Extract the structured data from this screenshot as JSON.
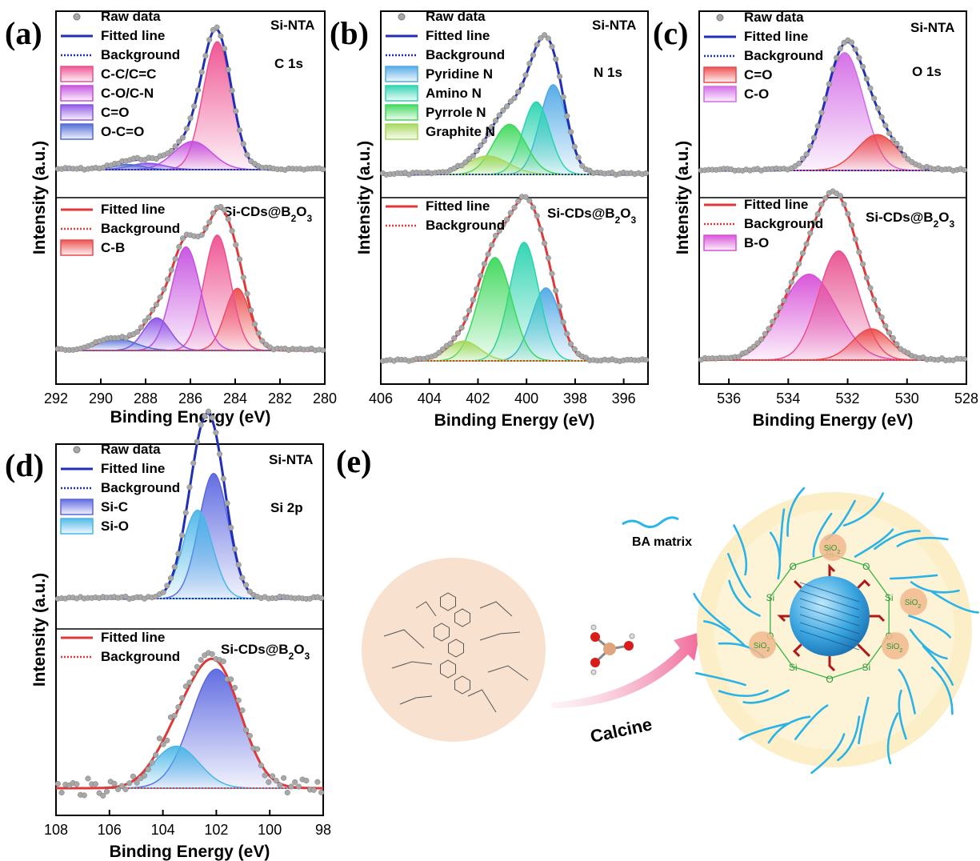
{
  "figure": {
    "panels": [
      {
        "id": "a",
        "panel_label": "(a)",
        "xlabel": "Binding Energy (eV)",
        "ylabel": "Intensity (a.u.)",
        "xlim": [
          292,
          280
        ],
        "xticks": [
          292,
          290,
          288,
          286,
          284,
          282,
          280
        ],
        "top": {
          "sample": "Si-NTA",
          "region": "C 1s",
          "legend": [
            {
              "label": "Raw data",
              "kind": "dot"
            },
            {
              "label": "Fitted line",
              "kind": "line",
              "color": "#1f2fb8"
            },
            {
              "label": "Background",
              "kind": "dotted",
              "color": "#1f2fb8"
            },
            {
              "label": "C-C/C=C",
              "kind": "box",
              "color": "#ee4f8f"
            },
            {
              "label": "C-O/C-N",
              "kind": "box",
              "color": "#c64fe0"
            },
            {
              "label": "C=O",
              "kind": "box",
              "color": "#8c52e6"
            },
            {
              "label": "O-C=O",
              "kind": "box",
              "color": "#4d6ad6"
            }
          ]
        },
        "bottom": {
          "sample": "Si-CDs@B2O3",
          "legend": [
            {
              "label": "Fitted line",
              "kind": "line",
              "color": "#e03838"
            },
            {
              "label": "Background",
              "kind": "dotted",
              "color": "#e03838"
            },
            {
              "label": "C-B",
              "kind": "box",
              "color": "#ec4a4a"
            }
          ]
        }
      },
      {
        "id": "b",
        "panel_label": "(b)",
        "xlabel": "Binding Energy (eV)",
        "ylabel": "Intensity (a.u.)",
        "xlim": [
          406,
          395
        ],
        "xticks": [
          406,
          404,
          402,
          400,
          398,
          396
        ],
        "top": {
          "sample": "Si-NTA",
          "region": "N 1s",
          "legend": [
            {
              "label": "Raw data",
              "kind": "dot"
            },
            {
              "label": "Fitted line",
              "kind": "line",
              "color": "#1f2fb8"
            },
            {
              "label": "Background",
              "kind": "dotted",
              "color": "#1f2fb8"
            },
            {
              "label": "Pyridine N",
              "kind": "box",
              "color": "#4ea8e6"
            },
            {
              "label": "Amino N",
              "kind": "box",
              "color": "#2ad3b0"
            },
            {
              "label": "Pyrrole N",
              "kind": "box",
              "color": "#3cd85a"
            },
            {
              "label": "Graphite N",
              "kind": "box",
              "color": "#a5d85a"
            }
          ]
        },
        "bottom": {
          "sample": "Si-CDs@B2O3",
          "legend": [
            {
              "label": "Fitted line",
              "kind": "line",
              "color": "#e03838"
            },
            {
              "label": "Background",
              "kind": "dotted",
              "color": "#e03838"
            }
          ]
        }
      },
      {
        "id": "c",
        "panel_label": "(c)",
        "xlabel": "Binding Energy (eV)",
        "ylabel": "Intensity (a.u.)",
        "xlim": [
          537,
          528
        ],
        "xticks": [
          536,
          534,
          532,
          530,
          528
        ],
        "top": {
          "sample": "Si-NTA",
          "region": "O 1s",
          "legend": [
            {
              "label": "Raw data",
              "kind": "dot"
            },
            {
              "label": "Fitted line",
              "kind": "line",
              "color": "#1f2fb8"
            },
            {
              "label": "Background",
              "kind": "dotted",
              "color": "#1f2fb8"
            },
            {
              "label": "C=O",
              "kind": "box",
              "color": "#ec4a4a"
            },
            {
              "label": "C-O",
              "kind": "box",
              "color": "#d46ae6"
            }
          ]
        },
        "bottom": {
          "sample": "Si-CDs@B2O3",
          "legend": [
            {
              "label": "Fitted line",
              "kind": "line",
              "color": "#e03838"
            },
            {
              "label": "Background",
              "kind": "dotted",
              "color": "#e03838"
            },
            {
              "label": "B-O",
              "kind": "box",
              "color": "#d84fd8"
            }
          ]
        }
      },
      {
        "id": "d",
        "panel_label": "(d)",
        "xlabel": "Binding Energy (eV)",
        "ylabel": "Intensity (a.u.)",
        "xlim": [
          108,
          98
        ],
        "xticks": [
          108,
          106,
          104,
          102,
          100,
          98
        ],
        "top": {
          "sample": "Si-NTA",
          "region": "Si 2p",
          "legend": [
            {
              "label": "Raw data",
              "kind": "dot"
            },
            {
              "label": "Fitted line",
              "kind": "line",
              "color": "#1f2fb8"
            },
            {
              "label": "Background",
              "kind": "dotted",
              "color": "#1f2fb8"
            },
            {
              "label": "Si-C",
              "kind": "box",
              "color": "#5a66e0"
            },
            {
              "label": "Si-O",
              "kind": "box",
              "color": "#4ab6e8"
            }
          ]
        },
        "bottom": {
          "sample": "Si-CDs@B2O3",
          "legend": [
            {
              "label": "Fitted line",
              "kind": "line",
              "color": "#e03838"
            },
            {
              "label": "Background",
              "kind": "dotted",
              "color": "#e03838"
            }
          ]
        }
      }
    ],
    "schematic": {
      "panel_label": "(e)",
      "matrix_label": "BA matrix",
      "arrow_label": "Calcine",
      "sio2_label": "SiO",
      "sio2_sub": "2",
      "si_label": "Si",
      "o_label": "O"
    }
  },
  "chart_data": [
    {
      "type": "line",
      "panel": "a",
      "title": "",
      "xlabel": "Binding Energy (eV)",
      "ylabel": "Intensity (a.u.)",
      "xlim": [
        292,
        280
      ],
      "stacked": [
        {
          "sample": "Si-NTA",
          "region": "C 1s",
          "baseline": 0.04,
          "peaks": [
            {
              "name": "C-C/C=C",
              "center": 284.8,
              "fwhm": 1.5,
              "height": 1.0,
              "color": "#ee4f8f"
            },
            {
              "name": "C-O/C-N",
              "center": 285.9,
              "fwhm": 2.0,
              "height": 0.22,
              "color": "#c64fe0"
            },
            {
              "name": "C=O",
              "center": 287.9,
              "fwhm": 1.8,
              "height": 0.05,
              "color": "#8c52e6"
            },
            {
              "name": "O-C=O",
              "center": 288.8,
              "fwhm": 1.6,
              "height": 0.04,
              "color": "#4d6ad6"
            }
          ],
          "fit_color": "#1f2fb8"
        },
        {
          "sample": "Si-CDs@B2O3",
          "baseline": 0.04,
          "peaks": [
            {
              "name": "C-B",
              "center": 283.9,
              "fwhm": 1.3,
              "height": 0.42,
              "color": "#ec4a4a"
            },
            {
              "name": "C-C/C=C",
              "center": 284.8,
              "fwhm": 1.4,
              "height": 0.78,
              "color": "#ee4f8f"
            },
            {
              "name": "C-O/C-N",
              "center": 286.2,
              "fwhm": 1.5,
              "height": 0.7,
              "color": "#c64fe0"
            },
            {
              "name": "C=O",
              "center": 287.5,
              "fwhm": 1.4,
              "height": 0.22,
              "color": "#8c52e6"
            },
            {
              "name": "O-C=O",
              "center": 289.3,
              "fwhm": 2.0,
              "height": 0.08,
              "color": "#4d6ad6"
            }
          ],
          "fit_color": "#e03838"
        }
      ]
    },
    {
      "type": "line",
      "panel": "b",
      "title": "",
      "xlabel": "Binding Energy (eV)",
      "ylabel": "Intensity (a.u.)",
      "xlim": [
        406,
        395
      ],
      "stacked": [
        {
          "sample": "Si-NTA",
          "region": "N 1s",
          "baseline": 0.04,
          "peaks": [
            {
              "name": "Pyridine N",
              "center": 398.9,
              "fwhm": 1.3,
              "height": 0.68,
              "color": "#4ea8e6"
            },
            {
              "name": "Amino N",
              "center": 399.6,
              "fwhm": 1.3,
              "height": 0.55,
              "color": "#2ad3b0"
            },
            {
              "name": "Pyrrole N",
              "center": 400.7,
              "fwhm": 1.6,
              "height": 0.38,
              "color": "#3cd85a"
            },
            {
              "name": "Graphite N",
              "center": 401.6,
              "fwhm": 2.0,
              "height": 0.14,
              "color": "#a5d85a"
            }
          ],
          "fit_color": "#1f2fb8"
        },
        {
          "sample": "Si-CDs@B2O3",
          "baseline": 0.04,
          "peaks": [
            {
              "name": "Pyridine N",
              "center": 399.2,
              "fwhm": 1.4,
              "height": 0.48,
              "color": "#4ea8e6"
            },
            {
              "name": "Amino N",
              "center": 400.1,
              "fwhm": 1.4,
              "height": 0.78,
              "color": "#2ad3b0"
            },
            {
              "name": "Pyrrole N",
              "center": 401.3,
              "fwhm": 1.6,
              "height": 0.68,
              "color": "#3cd85a"
            },
            {
              "name": "Graphite N",
              "center": 402.6,
              "fwhm": 1.6,
              "height": 0.13,
              "color": "#a5d85a"
            }
          ],
          "fit_color": "#e03838"
        }
      ]
    },
    {
      "type": "line",
      "panel": "c",
      "title": "",
      "xlabel": "Binding Energy (eV)",
      "ylabel": "Intensity (a.u.)",
      "xlim": [
        537,
        528
      ],
      "stacked": [
        {
          "sample": "Si-NTA",
          "region": "O 1s",
          "baseline": 0.04,
          "peaks": [
            {
              "name": "C-O",
              "center": 532.1,
              "fwhm": 1.5,
              "height": 0.92,
              "color": "#d46ae6"
            },
            {
              "name": "C=O",
              "center": 531.0,
              "fwhm": 1.6,
              "height": 0.28,
              "color": "#ec4a4a"
            }
          ],
          "fit_color": "#1f2fb8"
        },
        {
          "sample": "Si-CDs@B2O3",
          "baseline": 0.04,
          "peaks": [
            {
              "name": "B-O",
              "center": 533.3,
              "fwhm": 2.2,
              "height": 0.55,
              "color": "#d84fd8"
            },
            {
              "name": "C-O",
              "center": 532.3,
              "fwhm": 1.6,
              "height": 0.7,
              "color": "#e8508f"
            },
            {
              "name": "C=O",
              "center": 531.2,
              "fwhm": 1.5,
              "height": 0.2,
              "color": "#ec4a4a"
            }
          ],
          "fit_color": "#e03838"
        }
      ]
    },
    {
      "type": "line",
      "panel": "d",
      "title": "",
      "xlabel": "Binding Energy (eV)",
      "ylabel": "Intensity (a.u.)",
      "xlim": [
        108,
        98
      ],
      "stacked": [
        {
          "sample": "Si-NTA",
          "region": "Si 2p",
          "baseline": 0.03,
          "peaks": [
            {
              "name": "Si-C",
              "center": 102.1,
              "fwhm": 1.3,
              "height": 0.92,
              "color": "#5a66e0"
            },
            {
              "name": "Si-O",
              "center": 102.7,
              "fwhm": 1.3,
              "height": 0.65,
              "color": "#4ab6e8"
            }
          ],
          "fit_color": "#1f2fb8"
        },
        {
          "sample": "Si-CDs@B2O3",
          "baseline": 0.03,
          "peaks": [
            {
              "name": "Si-C",
              "center": 102.0,
              "fwhm": 2.2,
              "height": 0.85,
              "color": "#5a66e0"
            },
            {
              "name": "Si-O",
              "center": 103.5,
              "fwhm": 2.0,
              "height": 0.3,
              "color": "#4ab6e8"
            }
          ],
          "fit_color": "#e03838"
        }
      ]
    }
  ]
}
